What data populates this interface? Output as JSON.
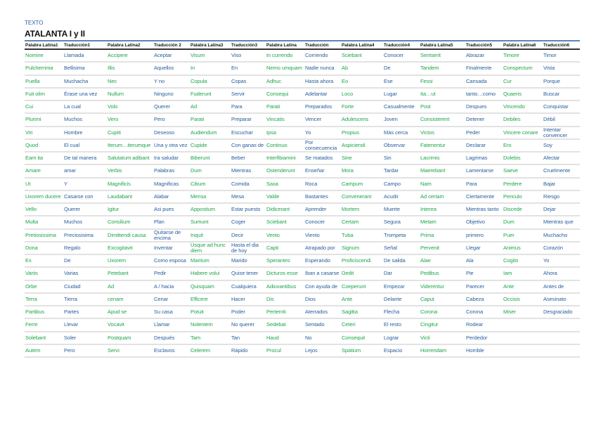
{
  "label": "TEXTO",
  "title": "ATALANTA I y II",
  "colors": {
    "latin": "#1ea64b",
    "spanish": "#2a5fa0",
    "rule": "#5b84b8"
  },
  "headers": [
    "Palabra Latina1",
    "Traducción1",
    "Palabra Latina2",
    "Traducción 2",
    "Palabra Latina3",
    "Traducción3",
    "Palabra Latina",
    "Traducción",
    "Palabra Latina4",
    "Traducción4",
    "Palabra Latina5",
    "Traducción5",
    "Palabra Latina6",
    "Traducción6"
  ],
  "rows": [
    [
      "Nomine",
      "Llamada",
      "Accipere",
      "Aceptar",
      "Visum",
      "Viso",
      "In currendo",
      "Corriendo",
      "Sciebant",
      "Conocer",
      "Sentserit",
      "Abrazar",
      "Timore",
      "Timor"
    ],
    [
      "Pulcherrima",
      "Bellisima",
      "Illis",
      "Aquellos",
      "In",
      "En",
      "Nemo umquam",
      "Nadie nunca",
      "Ab",
      "De",
      "Tandem",
      "Finalmente",
      "Conspectum",
      "Vista"
    ],
    [
      "Puella",
      "Muchacha",
      "Nec",
      "Y no",
      "Copula",
      "Copas",
      "Adhuc",
      "Hasta ahora",
      "Eo",
      "Ese",
      "Fessi",
      "Cansada",
      "Cur",
      "Porque"
    ],
    [
      "Fuit olim",
      "Érase una vez",
      "Nullum",
      "Ninguno",
      "Fuderunt",
      "Servir",
      "Consequi",
      "Adelantar",
      "Loco",
      "Lugar",
      "Ita…ut",
      "tanto…como",
      "Quaeris",
      "Buscar"
    ],
    [
      "Cui",
      "La cual",
      "Volo",
      "Querer",
      "Ad",
      "Para",
      "Parati",
      "Preparados",
      "Forte",
      "Casualmente",
      "Post",
      "Despues",
      "Vincendo",
      "Conquistar"
    ],
    [
      "Plurimi",
      "Muchos",
      "Vero",
      "Pero",
      "Parati",
      "Preparar",
      "Vincatis",
      "Vencer",
      "Adulescens",
      "Joven",
      "Consisterent",
      "Detener",
      "Debiles",
      "Débil"
    ],
    [
      "Viri",
      "Hombre",
      "Cupiti",
      "Deseoso",
      "Audiendum",
      "Escuchar",
      "Ipsa",
      "Yo",
      "Propius",
      "Más cerca",
      "Victos",
      "Peder",
      "Vincere conare",
      "Intentar convencer"
    ],
    [
      "Quod",
      "El cual",
      "Iterum…iterumque",
      "Una y otra vez",
      "Cupide",
      "Con ganas de",
      "Continuo",
      "Por consecuencia",
      "Aspiciendi",
      "Observar",
      "Fatenentur",
      "Declarar",
      "Ero",
      "Soy"
    ],
    [
      "Eam ita",
      "De tal manera",
      "Salutatum adibant",
      "Ira saludar",
      "Biberunt",
      "Beber",
      "Interfibiamini",
      "Se matados",
      "Sine",
      "Sin",
      "Lacrimis",
      "Lagrimas",
      "Dolebis",
      "Afectar"
    ],
    [
      "Amare",
      "amar",
      "Verbis",
      "Palabras",
      "Dum",
      "Mientras",
      "Ostenderunt",
      "Enseñar",
      "Mora",
      "Tardar",
      "Maerebant",
      "Lamentarse",
      "Saeve",
      "Cruelmente"
    ],
    [
      "Ut",
      "Y",
      "Magnificis",
      "Magnificas",
      "Cibum",
      "Comida",
      "Saxa",
      "Roca",
      "Campum",
      "Campo",
      "Nam",
      "Para",
      "Perdere",
      "Bajar"
    ],
    [
      "Uxorem ducere",
      "Casarse con",
      "Laudabant",
      "Alabar",
      "Mensa",
      "Mesa",
      "Valde",
      "Bastantes",
      "Convenerant",
      "Acudir",
      "Ad certam",
      "Ciertamente",
      "Periculo",
      "Riesgo"
    ],
    [
      "Vello",
      "Querer",
      "Igitur",
      "Asi pues",
      "Appositum",
      "Estar puesto",
      "Didicerant",
      "Aprender",
      "Mortem",
      "Muerte",
      "Interea",
      "Mientras tanto",
      "Discede",
      "Dejar"
    ],
    [
      "Multa",
      "Muchos",
      "Consilium",
      "Plan",
      "Sumunt",
      "Coger",
      "Sciebant",
      "Conocer",
      "Certam",
      "Segura",
      "Metam",
      "Objetivo",
      "Dum",
      "Mientras que"
    ],
    [
      "Pretiosissima",
      "Preciosisima",
      "Dimittendi causa",
      "Quitarse de encima",
      "Inquit",
      "Decir",
      "Vento",
      "Viento",
      "Tuba",
      "Trompeta",
      "Prima",
      "primero",
      "Puer",
      "Muchacho"
    ],
    [
      "Dona",
      "Regalo",
      "Excogitavit",
      "Inventar",
      "Usque ad hunc diem",
      "Hasta el dia de hoy",
      "Capti",
      "Atrapado por",
      "Signum",
      "Señal",
      "Pervenit",
      "Llegar",
      "Animus",
      "Corazón"
    ],
    [
      "Ex",
      "De",
      "Uxorem",
      "Como esposa",
      "Maritum",
      "Marido",
      "Sperantes",
      "Esperando",
      "Proficiscendi",
      "De salida",
      "Alae",
      "Ala",
      "Cogito",
      "Yo"
    ],
    [
      "Variis",
      "Varias",
      "Petebant",
      "Pedir",
      "Habere volui",
      "Quise tener",
      "Dicturos esse",
      "Iban a casarse",
      "Dedit",
      "Dar",
      "Pedibus",
      "Pie",
      "Iam",
      "Ahora"
    ],
    [
      "Orbe",
      "Ciudad",
      "Ad",
      "A / hacia",
      "Quisquam",
      "Cualquiera",
      "Adiuvantibus",
      "Con ayuda de",
      "Coeperunt",
      "Empezar",
      "Viderentur",
      "Parecer",
      "Ante",
      "Antes de"
    ],
    [
      "Terra",
      "Tierra",
      "cenam",
      "Cenar",
      "Efficere",
      "Hacer",
      "Dis",
      "Dios",
      "Ante",
      "Delante",
      "Caput",
      "Cabeza",
      "Occisis",
      "Asesinato"
    ],
    [
      "Partibus",
      "Partes",
      "Apud se",
      "Su casa",
      "Potuit",
      "Poder",
      "Perterriti",
      "Aterrados",
      "Sagitta",
      "Flecha",
      "Corona",
      "Corona",
      "Miser",
      "Desgraciado"
    ],
    [
      "Ferre",
      "Llevar",
      "Vocavit",
      "Llamar",
      "Nolentem",
      "No querer",
      "Sedebat",
      "Sentado",
      "Ceteri",
      "El resto",
      "Cingitur",
      "Rodear",
      "",
      ""
    ],
    [
      "Solebant",
      "Soler",
      "Postquam",
      "Después",
      "Tam",
      "Tan",
      "Haud",
      "No",
      "Consequit",
      "Lograr",
      "Victi",
      "Perdedor",
      "",
      ""
    ],
    [
      "Autem",
      "Pero",
      "Servi",
      "Esclavos",
      "Celerem",
      "Rápido",
      "Procul",
      "Lejos",
      "Spatium",
      "Espacio",
      "Horrendam",
      "Horrible",
      "",
      ""
    ]
  ]
}
